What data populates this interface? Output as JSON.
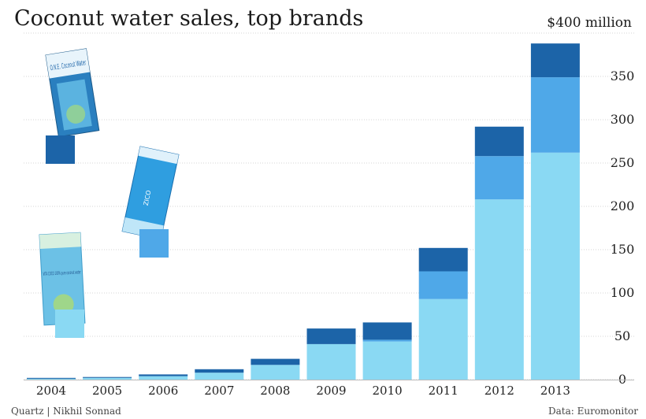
{
  "chart_data": {
    "type": "bar",
    "stacked": true,
    "title": "Coconut water sales, top brands",
    "y_unit_label": "$400 million",
    "xlabel": "",
    "ylabel": "",
    "ylim": [
      0,
      400
    ],
    "yticks": [
      0,
      50,
      100,
      150,
      200,
      250,
      300,
      350
    ],
    "grid": true,
    "categories": [
      "2004",
      "2005",
      "2006",
      "2007",
      "2008",
      "2009",
      "2010",
      "2011",
      "2012",
      "2013"
    ],
    "series": [
      {
        "color": "#8ad9f3",
        "values": [
          1,
          2,
          4,
          8,
          17,
          41,
          44,
          93,
          208,
          262
        ]
      },
      {
        "color": "#4fa8e8",
        "values": [
          0,
          0,
          0,
          0,
          0,
          0,
          2,
          32,
          50,
          87
        ]
      },
      {
        "color": "#1c64a8",
        "values": [
          1,
          1,
          2,
          4,
          7,
          18,
          20,
          27,
          34,
          39
        ]
      }
    ],
    "legend": [
      {
        "brand_text": "O.N.E. Coconut Water",
        "color": "#1c64a8"
      },
      {
        "brand_text": "ZICO",
        "color": "#4fa8e8"
      },
      {
        "brand_text": "VITA COCO 100% pure coconut water",
        "color": "#8ad9f3"
      }
    ]
  },
  "footer": {
    "credit": "Quartz | Nikhil Sonnad",
    "source": "Data: Euromonitor"
  }
}
